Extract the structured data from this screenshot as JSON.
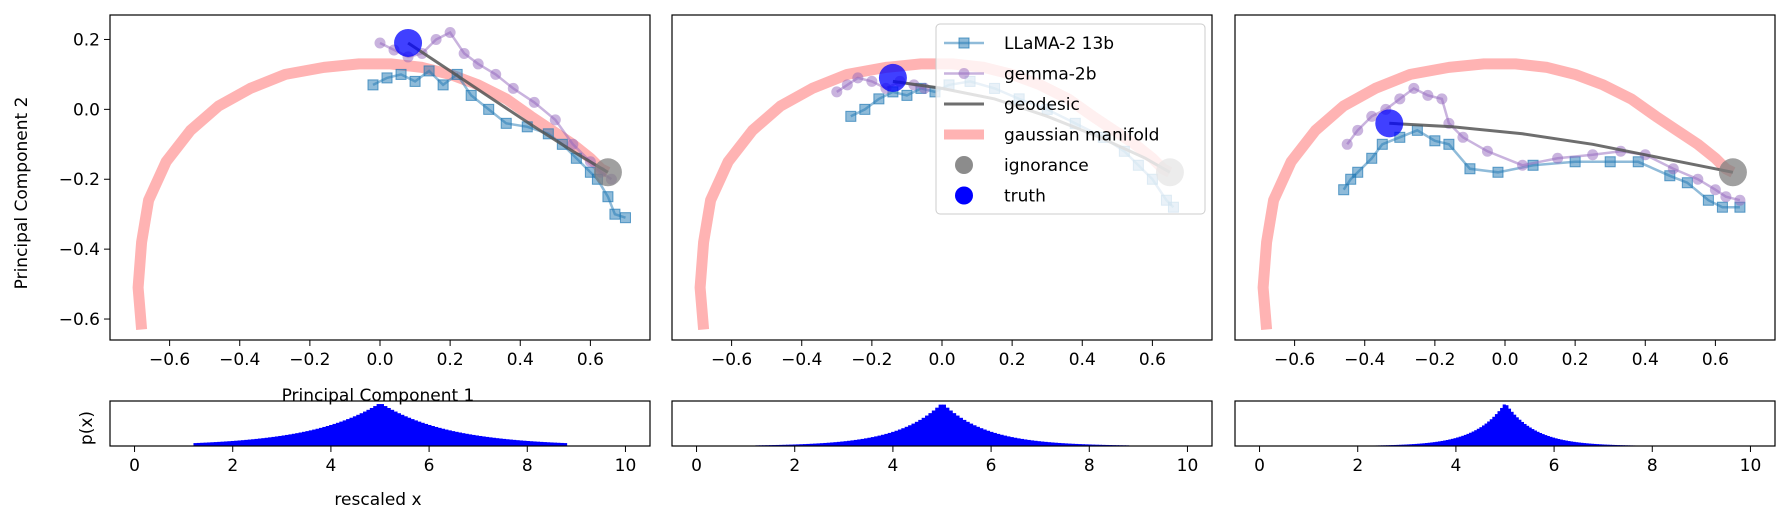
{
  "figure": {
    "xlabel_main": "Principal Component 1",
    "ylabel_main": "Principal Component 2",
    "ylabel_hist": "p(x)",
    "xlabel_hist": "rescaled x"
  },
  "colors": {
    "llama": "#1f77b4",
    "gemma": "#9467bd",
    "geodesic": "#555555",
    "manifold": "#ff9999",
    "ignorance": "#808080",
    "truth": "#0000ff",
    "hist": "#0000ff"
  },
  "legend": {
    "placement": "top-right of middle panel",
    "items": [
      {
        "key": "llama",
        "label": "LLaMA-2 13b",
        "kind": "line-square"
      },
      {
        "key": "gemma",
        "label": "gemma-2b",
        "kind": "line-circle"
      },
      {
        "key": "geodesic",
        "label": "geodesic",
        "kind": "line"
      },
      {
        "key": "manifold",
        "label": "gaussian manifold",
        "kind": "thick-line"
      },
      {
        "key": "ignorance",
        "label": "ignorance",
        "kind": "dot"
      },
      {
        "key": "truth",
        "label": "truth",
        "kind": "dot"
      }
    ]
  },
  "chart_data": [
    {
      "type": "line",
      "panel": 1,
      "xlim": [
        -0.77,
        0.77
      ],
      "ylim": [
        -0.66,
        0.27
      ],
      "xticks": [
        -0.6,
        -0.4,
        -0.2,
        0.0,
        0.2,
        0.4,
        0.6
      ],
      "xtick_labels": [
        "−0.6",
        "−0.4",
        "−0.2",
        "0.0",
        "0.2",
        "0.4",
        "0.6"
      ],
      "yticks": [
        -0.6,
        -0.4,
        -0.2,
        0.0,
        0.2
      ],
      "ytick_labels": [
        "−0.6",
        "−0.4",
        "−0.2",
        "0.0",
        "0.2"
      ],
      "show_xlabel": true,
      "show_ylabel": true,
      "manifold": {
        "x": [
          -0.68,
          -0.69,
          -0.68,
          -0.66,
          -0.61,
          -0.54,
          -0.46,
          -0.37,
          -0.27,
          -0.16,
          -0.06,
          0.03,
          0.12,
          0.2,
          0.28,
          0.36,
          0.43,
          0.49,
          0.55,
          0.6,
          0.63,
          0.65
        ],
        "y": [
          -0.63,
          -0.51,
          -0.38,
          -0.26,
          -0.15,
          -0.06,
          0.01,
          0.06,
          0.1,
          0.12,
          0.13,
          0.13,
          0.12,
          0.1,
          0.07,
          0.03,
          -0.02,
          -0.06,
          -0.1,
          -0.14,
          -0.17,
          -0.18
        ]
      },
      "geodesic": {
        "x": [
          0.08,
          0.2,
          0.32,
          0.44,
          0.55,
          0.65
        ],
        "y": [
          0.19,
          0.11,
          0.03,
          -0.05,
          -0.12,
          -0.18
        ]
      },
      "llama": {
        "x": [
          -0.02,
          0.02,
          0.06,
          0.1,
          0.14,
          0.18,
          0.22,
          0.26,
          0.31,
          0.36,
          0.42,
          0.48,
          0.52,
          0.56,
          0.6,
          0.62,
          0.65,
          0.67,
          0.7
        ],
        "y": [
          0.07,
          0.09,
          0.1,
          0.08,
          0.11,
          0.07,
          0.1,
          0.04,
          0.0,
          -0.04,
          -0.05,
          -0.07,
          -0.1,
          -0.14,
          -0.18,
          -0.2,
          -0.25,
          -0.3,
          -0.31
        ]
      },
      "gemma": {
        "x": [
          0.0,
          0.04,
          0.08,
          0.12,
          0.16,
          0.2,
          0.24,
          0.28,
          0.33,
          0.38,
          0.44,
          0.5,
          0.55,
          0.6,
          0.63,
          0.66
        ],
        "y": [
          0.19,
          0.17,
          0.15,
          0.16,
          0.2,
          0.22,
          0.16,
          0.13,
          0.1,
          0.06,
          0.02,
          -0.03,
          -0.1,
          -0.15,
          -0.18,
          -0.2
        ]
      },
      "ignorance": {
        "x": 0.65,
        "y": -0.18
      },
      "truth": {
        "x": 0.08,
        "y": 0.19
      }
    },
    {
      "type": "line",
      "panel": 2,
      "xlim": [
        -0.77,
        0.77
      ],
      "ylim": [
        -0.66,
        0.27
      ],
      "xticks": [
        -0.6,
        -0.4,
        -0.2,
        0.0,
        0.2,
        0.4,
        0.6
      ],
      "xtick_labels": [
        "−0.6",
        "−0.4",
        "−0.2",
        "0.0",
        "0.2",
        "0.4",
        "0.6"
      ],
      "yticks": [],
      "ytick_labels": [],
      "show_xlabel": false,
      "show_ylabel": false,
      "manifold": {
        "x": [
          -0.68,
          -0.69,
          -0.68,
          -0.66,
          -0.61,
          -0.54,
          -0.46,
          -0.37,
          -0.27,
          -0.16,
          -0.06,
          0.03,
          0.12,
          0.2,
          0.28,
          0.36,
          0.43,
          0.49,
          0.55,
          0.6,
          0.63,
          0.65
        ],
        "y": [
          -0.63,
          -0.51,
          -0.38,
          -0.26,
          -0.15,
          -0.06,
          0.01,
          0.06,
          0.1,
          0.12,
          0.13,
          0.13,
          0.12,
          0.1,
          0.07,
          0.03,
          -0.02,
          -0.06,
          -0.1,
          -0.14,
          -0.17,
          -0.18
        ]
      },
      "geodesic": {
        "x": [
          -0.14,
          0.0,
          0.15,
          0.3,
          0.45,
          0.58,
          0.65
        ],
        "y": [
          0.08,
          0.06,
          0.03,
          -0.02,
          -0.08,
          -0.14,
          -0.18
        ]
      },
      "llama": {
        "x": [
          -0.26,
          -0.22,
          -0.18,
          -0.14,
          -0.1,
          -0.06,
          -0.02,
          0.02,
          0.08,
          0.15,
          0.22,
          0.3,
          0.38,
          0.46,
          0.52,
          0.56,
          0.6,
          0.64,
          0.66
        ],
        "y": [
          -0.02,
          0.0,
          0.03,
          0.05,
          0.04,
          0.06,
          0.05,
          0.07,
          0.08,
          0.06,
          0.03,
          0.0,
          -0.04,
          -0.08,
          -0.12,
          -0.16,
          -0.2,
          -0.26,
          -0.28
        ]
      },
      "gemma": {
        "x": [
          -0.3,
          -0.27,
          -0.24,
          -0.2,
          -0.16,
          -0.12,
          -0.08,
          -0.05
        ],
        "y": [
          0.05,
          0.07,
          0.09,
          0.08,
          0.06,
          0.08,
          0.07,
          0.06
        ]
      },
      "ignorance": {
        "x": 0.65,
        "y": -0.18
      },
      "truth": {
        "x": -0.14,
        "y": 0.09
      }
    },
    {
      "type": "line",
      "panel": 3,
      "xlim": [
        -0.77,
        0.77
      ],
      "ylim": [
        -0.66,
        0.27
      ],
      "xticks": [
        -0.6,
        -0.4,
        -0.2,
        0.0,
        0.2,
        0.4,
        0.6
      ],
      "xtick_labels": [
        "−0.6",
        "−0.4",
        "−0.2",
        "0.0",
        "0.2",
        "0.4",
        "0.6"
      ],
      "yticks": [],
      "ytick_labels": [],
      "show_xlabel": false,
      "show_ylabel": false,
      "manifold": {
        "x": [
          -0.68,
          -0.69,
          -0.68,
          -0.66,
          -0.61,
          -0.54,
          -0.46,
          -0.37,
          -0.27,
          -0.16,
          -0.06,
          0.03,
          0.12,
          0.2,
          0.28,
          0.36,
          0.43,
          0.49,
          0.55,
          0.6,
          0.63,
          0.65
        ],
        "y": [
          -0.63,
          -0.51,
          -0.38,
          -0.26,
          -0.15,
          -0.06,
          0.01,
          0.06,
          0.1,
          0.12,
          0.13,
          0.13,
          0.12,
          0.1,
          0.07,
          0.03,
          -0.02,
          -0.06,
          -0.1,
          -0.14,
          -0.17,
          -0.18
        ]
      },
      "geodesic": {
        "x": [
          -0.33,
          -0.15,
          0.05,
          0.25,
          0.45,
          0.65
        ],
        "y": [
          -0.04,
          -0.05,
          -0.07,
          -0.1,
          -0.14,
          -0.18
        ]
      },
      "llama": {
        "x": [
          -0.46,
          -0.44,
          -0.42,
          -0.38,
          -0.35,
          -0.3,
          -0.25,
          -0.2,
          -0.16,
          -0.1,
          -0.02,
          0.08,
          0.2,
          0.3,
          0.38,
          0.47,
          0.52,
          0.58,
          0.62,
          0.67
        ],
        "y": [
          -0.23,
          -0.2,
          -0.18,
          -0.14,
          -0.1,
          -0.08,
          -0.06,
          -0.09,
          -0.1,
          -0.17,
          -0.18,
          -0.16,
          -0.15,
          -0.15,
          -0.15,
          -0.19,
          -0.21,
          -0.26,
          -0.28,
          -0.28
        ]
      },
      "gemma": {
        "x": [
          -0.45,
          -0.42,
          -0.38,
          -0.34,
          -0.3,
          -0.26,
          -0.22,
          -0.18,
          -0.16,
          -0.12,
          -0.05,
          0.05,
          0.15,
          0.25,
          0.33,
          0.4,
          0.48,
          0.55,
          0.6,
          0.63,
          0.67
        ],
        "y": [
          -0.1,
          -0.06,
          -0.02,
          0.0,
          0.03,
          0.06,
          0.04,
          0.03,
          -0.04,
          -0.08,
          -0.12,
          -0.16,
          -0.14,
          -0.13,
          -0.12,
          -0.13,
          -0.17,
          -0.2,
          -0.23,
          -0.25,
          -0.26
        ]
      },
      "ignorance": {
        "x": 0.65,
        "y": -0.18
      },
      "truth": {
        "x": -0.33,
        "y": -0.04
      }
    },
    {
      "type": "bar",
      "panel": 4,
      "xlim": [
        -0.5,
        10.5
      ],
      "xticks": [
        0,
        2,
        4,
        6,
        8,
        10
      ],
      "xtick_labels": [
        "0",
        "2",
        "4",
        "6",
        "8",
        "10"
      ],
      "range": [
        1.2,
        8.8
      ],
      "center": 5.0,
      "peak": 1.0,
      "width": 1.4,
      "shape": "laplace-like",
      "show_ylabel": true,
      "show_xlabel": true
    },
    {
      "type": "bar",
      "panel": 5,
      "xlim": [
        -0.5,
        10.5
      ],
      "xticks": [
        0,
        2,
        4,
        6,
        8,
        10
      ],
      "xtick_labels": [
        "0",
        "2",
        "4",
        "6",
        "8",
        "10"
      ],
      "range": [
        1.2,
        8.8
      ],
      "center": 5.0,
      "peak": 1.0,
      "width": 0.9,
      "shape": "laplace-like",
      "show_ylabel": false,
      "show_xlabel": false
    },
    {
      "type": "bar",
      "panel": 6,
      "xlim": [
        -0.5,
        10.5
      ],
      "xticks": [
        0,
        2,
        4,
        6,
        8,
        10
      ],
      "xtick_labels": [
        "0",
        "2",
        "4",
        "6",
        "8",
        "10"
      ],
      "range": [
        2.0,
        7.8
      ],
      "center": 5.0,
      "peak": 1.0,
      "width": 0.6,
      "shape": "laplace-like",
      "show_ylabel": false,
      "show_xlabel": false
    }
  ]
}
